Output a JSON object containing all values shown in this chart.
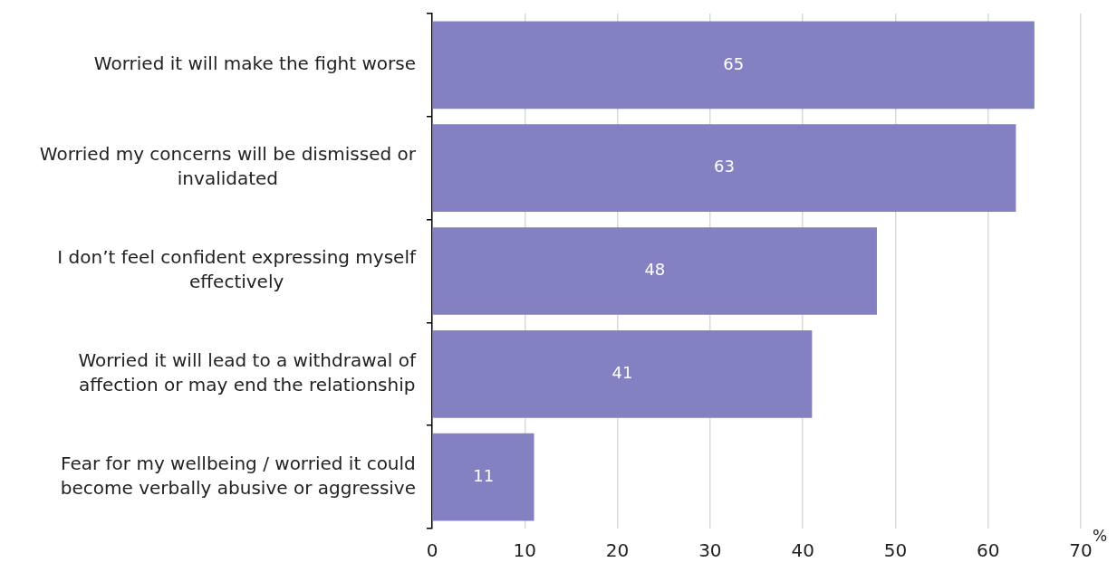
{
  "chart_data": {
    "type": "bar",
    "orientation": "horizontal",
    "categories": [
      "Worried it will make the fight worse",
      "Worried my concerns will be dismissed or invalidated",
      "I don’t feel confident expressing myself effectively",
      "Worried it will lead to a withdrawal of affection or may end the relationship",
      "Fear for my wellbeing / worried it could become verbally abusive or aggressive"
    ],
    "values": [
      65,
      63,
      48,
      41,
      11
    ],
    "color": "#8481c2",
    "xlim": [
      0,
      70
    ],
    "xticks": [
      0,
      10,
      20,
      30,
      40,
      50,
      60,
      70
    ],
    "xlabel": "%",
    "grid": "x",
    "data_labels": true
  }
}
